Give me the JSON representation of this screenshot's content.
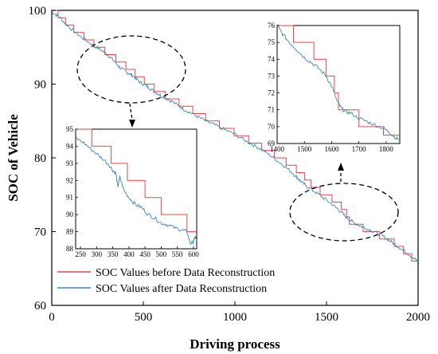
{
  "colors": {
    "before": "#e8474b",
    "after": "#3d86b8"
  },
  "chart_data": {
    "type": "line",
    "xlabel": "Driving process",
    "ylabel": "SOC of Vehicle",
    "xlim": [
      0,
      2000
    ],
    "ylim": [
      60,
      100
    ],
    "xticks": [
      0,
      500,
      1000,
      1500,
      2000
    ],
    "yticks": [
      60,
      70,
      80,
      90,
      100
    ],
    "grid": false,
    "legend_position": "bottom-left",
    "series": [
      {
        "name": "SOC Values before Data Reconstruction",
        "style": "step",
        "points": [
          [
            0,
            100
          ],
          [
            35,
            99
          ],
          [
            75,
            98
          ],
          [
            120,
            97
          ],
          [
            175,
            96
          ],
          [
            230,
            95
          ],
          [
            290,
            94
          ],
          [
            350,
            93
          ],
          [
            405,
            92
          ],
          [
            455,
            91
          ],
          [
            505,
            90
          ],
          [
            560,
            89
          ],
          [
            620,
            88
          ],
          [
            695,
            87
          ],
          [
            770,
            86
          ],
          [
            840,
            85
          ],
          [
            915,
            84
          ],
          [
            995,
            83
          ],
          [
            1075,
            82
          ],
          [
            1145,
            81
          ],
          [
            1215,
            80
          ],
          [
            1280,
            79
          ],
          [
            1335,
            78
          ],
          [
            1380,
            77
          ],
          [
            1415,
            76
          ],
          [
            1465,
            75
          ],
          [
            1530,
            74
          ],
          [
            1580,
            73
          ],
          [
            1610,
            72
          ],
          [
            1625,
            71
          ],
          [
            1700,
            70
          ],
          [
            1790,
            69
          ],
          [
            1870,
            68
          ],
          [
            1920,
            67
          ],
          [
            1965,
            66
          ],
          [
            2000,
            66
          ]
        ]
      },
      {
        "name": "SOC Values after Data Reconstruction",
        "style": "noisy",
        "points": [
          [
            0,
            99.8
          ],
          [
            40,
            99.1
          ],
          [
            100,
            97.6
          ],
          [
            160,
            96.4
          ],
          [
            230,
            95.2
          ],
          [
            290,
            94.3
          ],
          [
            330,
            93.4
          ],
          [
            370,
            92.3
          ],
          [
            410,
            91.6
          ],
          [
            440,
            91.2
          ],
          [
            480,
            90.3
          ],
          [
            520,
            89.7
          ],
          [
            560,
            89.0
          ],
          [
            600,
            88.4
          ],
          [
            660,
            87.6
          ],
          [
            720,
            86.6
          ],
          [
            780,
            85.8
          ],
          [
            850,
            84.9
          ],
          [
            920,
            84.1
          ],
          [
            1000,
            83.2
          ],
          [
            1080,
            82.0
          ],
          [
            1150,
            81.1
          ],
          [
            1210,
            80.0
          ],
          [
            1270,
            78.9
          ],
          [
            1330,
            77.6
          ],
          [
            1360,
            76.8
          ],
          [
            1400,
            76.0
          ],
          [
            1460,
            75.0
          ],
          [
            1520,
            73.9
          ],
          [
            1570,
            72.9
          ],
          [
            1610,
            71.9
          ],
          [
            1650,
            71.2
          ],
          [
            1700,
            70.6
          ],
          [
            1750,
            70.1
          ],
          [
            1800,
            69.5
          ],
          [
            1850,
            68.7
          ],
          [
            1900,
            67.8
          ],
          [
            1950,
            66.9
          ],
          [
            2000,
            66.0
          ]
        ]
      }
    ],
    "insets": [
      {
        "xlim": [
          235,
          610
        ],
        "ylim": [
          88,
          95
        ],
        "xticks": [
          250,
          300,
          350,
          400,
          450,
          500,
          550,
          600
        ],
        "yticks": [
          88,
          89,
          90,
          91,
          92,
          93,
          94,
          95
        ],
        "before": [
          [
            235,
            95
          ],
          [
            285,
            95
          ],
          [
            285,
            94
          ],
          [
            345,
            94
          ],
          [
            345,
            93
          ],
          [
            395,
            93
          ],
          [
            395,
            92
          ],
          [
            450,
            92
          ],
          [
            450,
            91
          ],
          [
            500,
            91
          ],
          [
            500,
            90
          ],
          [
            580,
            90
          ],
          [
            580,
            89
          ],
          [
            610,
            89
          ]
        ],
        "after": [
          [
            235,
            94.5
          ],
          [
            260,
            94.2
          ],
          [
            285,
            93.8
          ],
          [
            310,
            93.4
          ],
          [
            335,
            93.0
          ],
          [
            350,
            92.6
          ],
          [
            360,
            92.4
          ],
          [
            365,
            91.6
          ],
          [
            372,
            92.2
          ],
          [
            385,
            91.4
          ],
          [
            400,
            91.0
          ],
          [
            420,
            90.6
          ],
          [
            440,
            90.4
          ],
          [
            460,
            90.0
          ],
          [
            480,
            89.8
          ],
          [
            500,
            89.5
          ],
          [
            520,
            89.4
          ],
          [
            545,
            89.2
          ],
          [
            565,
            89.1
          ],
          [
            580,
            89.0
          ],
          [
            590,
            88.3
          ],
          [
            600,
            88.4
          ],
          [
            605,
            88.7
          ],
          [
            610,
            88.5
          ]
        ]
      },
      {
        "xlim": [
          1400,
          1850
        ],
        "ylim": [
          69,
          76
        ],
        "xticks": [
          1400,
          1500,
          1600,
          1700,
          1800
        ],
        "yticks": [
          69,
          70,
          71,
          72,
          73,
          74,
          75,
          76
        ],
        "before": [
          [
            1400,
            76
          ],
          [
            1460,
            76
          ],
          [
            1460,
            75
          ],
          [
            1535,
            75
          ],
          [
            1535,
            74
          ],
          [
            1580,
            74
          ],
          [
            1580,
            73
          ],
          [
            1610,
            73
          ],
          [
            1610,
            72
          ],
          [
            1625,
            72
          ],
          [
            1625,
            71
          ],
          [
            1700,
            71
          ],
          [
            1700,
            70
          ],
          [
            1790,
            70
          ],
          [
            1790,
            69.5
          ],
          [
            1850,
            69.5
          ]
        ],
        "after": [
          [
            1400,
            76
          ],
          [
            1420,
            75.5
          ],
          [
            1445,
            75.0
          ],
          [
            1470,
            74.6
          ],
          [
            1500,
            74.1
          ],
          [
            1525,
            73.8
          ],
          [
            1550,
            73.5
          ],
          [
            1580,
            73.0
          ],
          [
            1600,
            72.4
          ],
          [
            1620,
            71.5
          ],
          [
            1635,
            71.1
          ],
          [
            1650,
            70.9
          ],
          [
            1670,
            70.8
          ],
          [
            1700,
            70.5
          ],
          [
            1730,
            70.3
          ],
          [
            1760,
            70.1
          ],
          [
            1790,
            69.9
          ],
          [
            1810,
            69.7
          ],
          [
            1830,
            69.4
          ],
          [
            1850,
            69.2
          ]
        ]
      }
    ]
  }
}
